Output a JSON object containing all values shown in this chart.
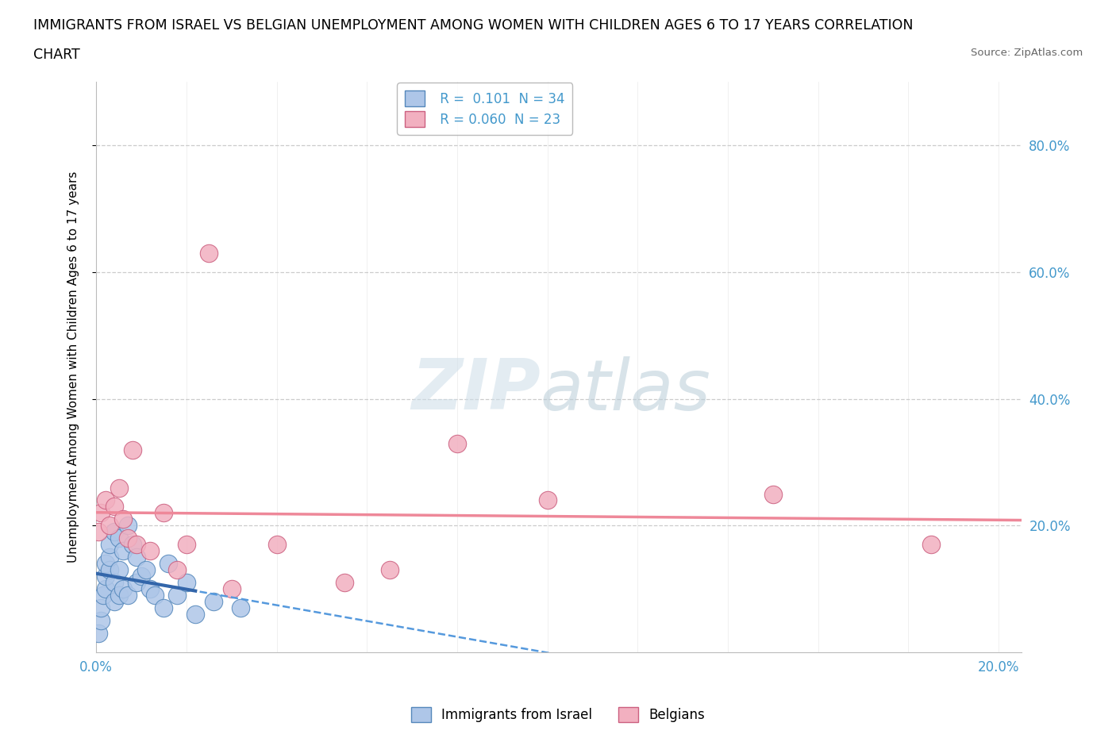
{
  "title_line1": "IMMIGRANTS FROM ISRAEL VS BELGIAN UNEMPLOYMENT AMONG WOMEN WITH CHILDREN AGES 6 TO 17 YEARS CORRELATION",
  "title_line2": "CHART",
  "source": "Source: ZipAtlas.com",
  "ylabel": "Unemployment Among Women with Children Ages 6 to 17 years",
  "xlim": [
    0.0,
    0.205
  ],
  "ylim": [
    0.0,
    0.9
  ],
  "xtick_vals": [
    0.0,
    0.02,
    0.04,
    0.06,
    0.08,
    0.1,
    0.12,
    0.14,
    0.16,
    0.18,
    0.2
  ],
  "ytick_vals": [
    0.2,
    0.4,
    0.6,
    0.8
  ],
  "ytick_labels": [
    "20.0%",
    "40.0%",
    "60.0%",
    "80.0%"
  ],
  "grid_color": "#cccccc",
  "blue_color": "#4499cc",
  "scatter_color_israel": "#aec6e8",
  "scatter_edge_israel": "#5588bb",
  "scatter_color_belgian": "#f2b0c0",
  "scatter_edge_belgian": "#cc6080",
  "trendline_israel_solid": "#3366aa",
  "trendline_dashed": "#5599dd",
  "trendline_belgian": "#ee8899",
  "legend_R1": "0.101",
  "legend_N1": "34",
  "legend_R2": "0.060",
  "legend_N2": "23",
  "israel_x": [
    0.0005,
    0.001,
    0.001,
    0.0015,
    0.002,
    0.002,
    0.002,
    0.003,
    0.003,
    0.003,
    0.004,
    0.004,
    0.004,
    0.005,
    0.005,
    0.005,
    0.006,
    0.006,
    0.007,
    0.007,
    0.008,
    0.009,
    0.009,
    0.01,
    0.011,
    0.012,
    0.013,
    0.015,
    0.016,
    0.018,
    0.02,
    0.022,
    0.026,
    0.032
  ],
  "israel_y": [
    0.03,
    0.05,
    0.07,
    0.09,
    0.1,
    0.12,
    0.14,
    0.13,
    0.15,
    0.17,
    0.08,
    0.11,
    0.19,
    0.09,
    0.13,
    0.18,
    0.1,
    0.16,
    0.09,
    0.2,
    0.17,
    0.15,
    0.11,
    0.12,
    0.13,
    0.1,
    0.09,
    0.07,
    0.14,
    0.09,
    0.11,
    0.06,
    0.08,
    0.07
  ],
  "belgian_x": [
    0.0005,
    0.001,
    0.002,
    0.003,
    0.004,
    0.005,
    0.006,
    0.007,
    0.008,
    0.009,
    0.012,
    0.015,
    0.018,
    0.02,
    0.025,
    0.03,
    0.04,
    0.055,
    0.065,
    0.08,
    0.1,
    0.15,
    0.185
  ],
  "belgian_y": [
    0.19,
    0.22,
    0.24,
    0.2,
    0.23,
    0.26,
    0.21,
    0.18,
    0.32,
    0.17,
    0.16,
    0.22,
    0.13,
    0.17,
    0.63,
    0.1,
    0.17,
    0.11,
    0.13,
    0.33,
    0.24,
    0.25,
    0.17
  ]
}
